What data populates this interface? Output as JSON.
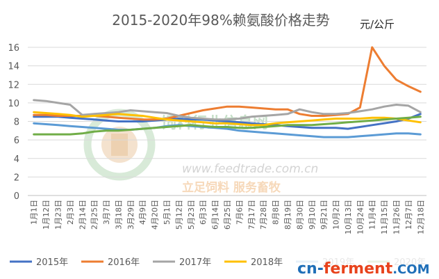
{
  "chart_data": {
    "type": "line",
    "title": "2015-2020年98%赖氨酸价格走势",
    "ylabel": "元/公斤",
    "xlabel": "",
    "ylim": [
      0,
      16
    ],
    "yticks": [
      0,
      2,
      4,
      6,
      8,
      10,
      12,
      14,
      16
    ],
    "grid": true,
    "legend_position": "bottom",
    "categories": [
      "1月1日",
      "1月12日",
      "1月23日",
      "2月3日",
      "2月14日",
      "2月25日",
      "3月7日",
      "3月18日",
      "3月29日",
      "4月9日",
      "4月20日",
      "5月1日",
      "5月12日",
      "5月23日",
      "6月3日",
      "6月14日",
      "6月25日",
      "7月6日",
      "7月17日",
      "7月28日",
      "8月8日",
      "8月19日",
      "8月30日",
      "9月10日",
      "9月21日",
      "10月2日",
      "10月13日",
      "10月24日",
      "11月4日",
      "11月15日",
      "11月26日",
      "12月7日",
      "12月18日"
    ],
    "series": [
      {
        "name": "2015年",
        "color": "#4472c4",
        "values": [
          8.5,
          8.5,
          8.5,
          8.4,
          8.3,
          8.2,
          8.1,
          8.0,
          8.0,
          8.0,
          8.1,
          8.2,
          8.3,
          8.2,
          8.2,
          8.1,
          8.0,
          7.9,
          7.8,
          7.7,
          7.6,
          7.5,
          7.4,
          7.3,
          7.3,
          7.3,
          7.2,
          7.4,
          7.6,
          7.8,
          8.0,
          8.3,
          8.8
        ]
      },
      {
        "name": "2016年",
        "color": "#ed7d31",
        "values": [
          8.7,
          8.7,
          8.6,
          8.6,
          8.6,
          8.6,
          8.5,
          8.4,
          8.3,
          8.2,
          8.2,
          8.3,
          8.6,
          8.9,
          9.2,
          9.4,
          9.6,
          9.6,
          9.5,
          9.4,
          9.3,
          9.3,
          8.8,
          8.6,
          8.6,
          8.7,
          8.8,
          9.5,
          16.0,
          14.0,
          12.5,
          11.8,
          11.2
        ]
      },
      {
        "name": "2017年",
        "color": "#a5a5a5",
        "values": [
          10.3,
          10.2,
          10.0,
          9.8,
          8.7,
          8.8,
          8.9,
          9.0,
          9.2,
          9.1,
          9.0,
          8.9,
          8.6,
          8.4,
          8.3,
          8.2,
          8.2,
          8.3,
          8.5,
          8.6,
          8.7,
          8.8,
          9.3,
          9.0,
          8.8,
          8.8,
          8.9,
          9.1,
          9.3,
          9.6,
          9.8,
          9.7,
          9.0
        ]
      },
      {
        "name": "2018年",
        "color": "#ffc000",
        "values": [
          9.0,
          8.9,
          8.8,
          8.7,
          8.5,
          8.6,
          8.7,
          8.8,
          8.7,
          8.6,
          8.4,
          8.2,
          8.1,
          8.0,
          7.9,
          7.8,
          7.8,
          7.7,
          7.6,
          7.6,
          7.8,
          7.9,
          8.0,
          8.1,
          8.2,
          8.3,
          8.3,
          8.3,
          8.4,
          8.4,
          8.3,
          8.1,
          7.9
        ]
      },
      {
        "name": "2019年",
        "color": "#5b9bd5",
        "values": [
          7.8,
          7.7,
          7.6,
          7.5,
          7.4,
          7.3,
          7.2,
          7.1,
          7.1,
          7.2,
          7.3,
          7.5,
          7.6,
          7.5,
          7.4,
          7.3,
          7.2,
          7.0,
          6.9,
          6.8,
          6.7,
          6.6,
          6.5,
          6.4,
          6.3,
          6.3,
          6.3,
          6.4,
          6.5,
          6.6,
          6.7,
          6.7,
          6.6
        ]
      },
      {
        "name": "2020年",
        "color": "#70ad47",
        "values": [
          6.6,
          6.6,
          6.6,
          6.6,
          6.7,
          6.9,
          7.0,
          7.0,
          7.1,
          7.2,
          7.3,
          7.4,
          7.5,
          7.6,
          7.5,
          7.4,
          7.4,
          7.3,
          7.3,
          7.4,
          7.5,
          7.6,
          7.6,
          7.6,
          7.7,
          7.8,
          7.9,
          8.0,
          8.1,
          8.2,
          8.3,
          8.4,
          8.5
        ]
      }
    ]
  },
  "watermark": {
    "brand": "饲料行业信息网",
    "url": "www.feedtrade.com.cn",
    "slogan": "立足饲料  服务畜牧"
  },
  "brand_overlay": {
    "part1": "cn-",
    "part2": "ferment",
    "part3": ".COM"
  }
}
